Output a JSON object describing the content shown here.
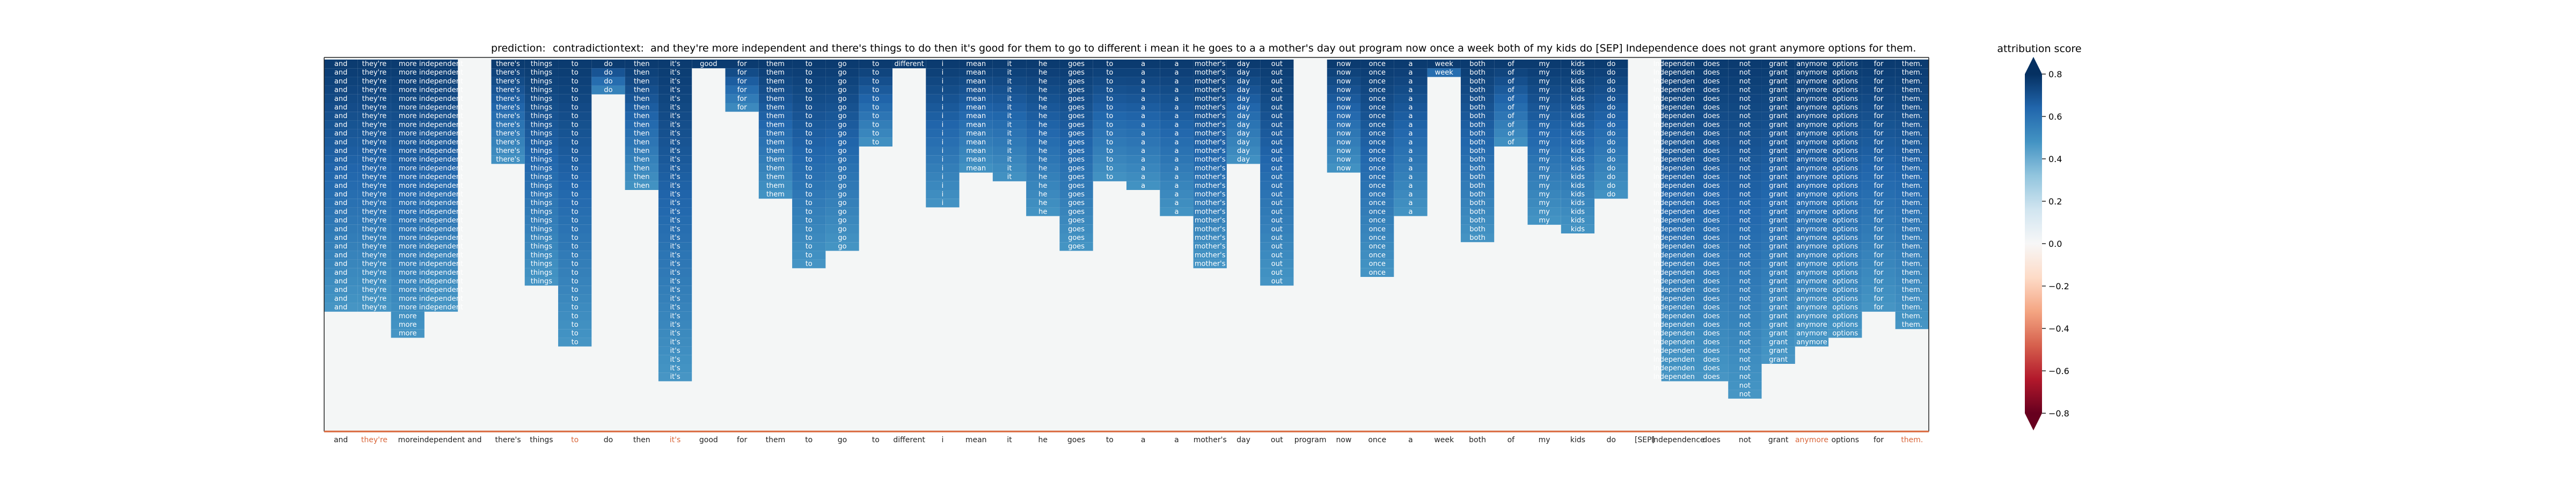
{
  "header": {
    "prediction_label": "prediction:",
    "prediction_value": "contradiction",
    "text_label": "text:",
    "text_value": "and they're more independent and there's things to do then it's good for them to go to different i mean it he goes to a a mother's day out program now once a week both of my kids do [SEP] Independence does not grant anymore options for them."
  },
  "colors": {
    "positive_max": "#053061",
    "neutral": "#f7f7f7",
    "negative_max": "#67001f",
    "frame_bottom": "#d9663a",
    "plot_background": "#f4f6f6"
  },
  "chart_data": {
    "type": "heatmap",
    "tokens": [
      "and",
      "they're",
      "more",
      "independent",
      "and",
      "there's",
      "things",
      "to",
      "do",
      "then",
      "it's",
      "good",
      "for",
      "them",
      "to",
      "go",
      "to",
      "different",
      "i",
      "mean",
      "it",
      "he",
      "goes",
      "to",
      "a",
      "a",
      "mother's",
      "day",
      "out",
      "program",
      "now",
      "once",
      "a",
      "week",
      "both",
      "of",
      "my",
      "kids",
      "do",
      "[SEP]",
      "Independence",
      "does",
      "not",
      "grant",
      "anymore",
      "options",
      "for",
      "them."
    ],
    "column_heights": [
      29,
      29,
      32,
      29,
      0,
      12,
      26,
      33,
      4,
      15,
      37,
      1,
      6,
      16,
      24,
      22,
      10,
      1,
      17,
      13,
      14,
      18,
      22,
      14,
      15,
      18,
      24,
      12,
      26,
      0,
      13,
      25,
      18,
      2,
      21,
      10,
      19,
      20,
      16,
      0,
      37,
      37,
      39,
      35,
      33,
      32,
      29,
      31
    ],
    "colorbar": {
      "label": "attribution score",
      "ticks": [
        "0.8",
        "0.6",
        "0.4",
        "0.2",
        "0.0",
        "−0.2",
        "−0.4",
        "−0.6",
        "−0.8"
      ],
      "range": [
        -0.8,
        0.8
      ]
    }
  }
}
